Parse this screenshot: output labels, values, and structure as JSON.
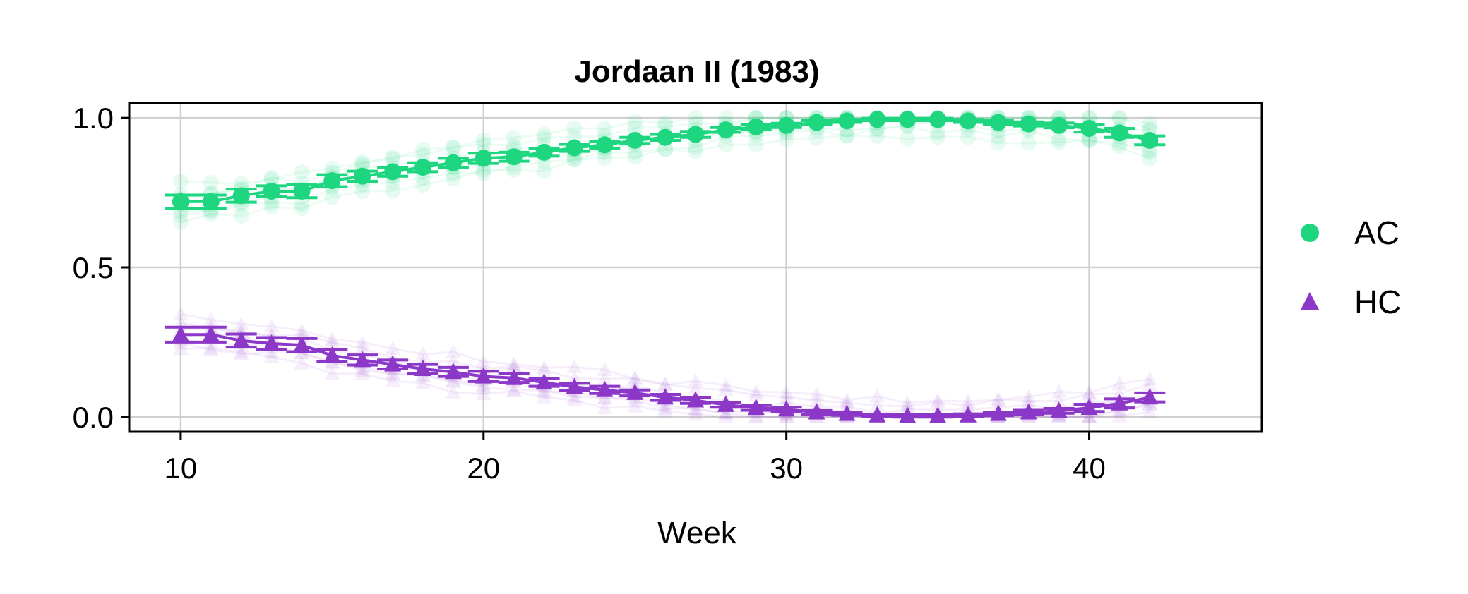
{
  "chart_data": {
    "type": "scatter",
    "title": "Jordaan II (1983)",
    "xlabel": "Week",
    "ylabel": "",
    "xlim": [
      8.3,
      45.7
    ],
    "ylim": [
      -0.05,
      1.05
    ],
    "xticks": [
      10,
      20,
      30,
      40
    ],
    "yticks": [
      0.0,
      0.5,
      1.0
    ],
    "xtick_labels": [
      "10",
      "20",
      "30",
      "40"
    ],
    "ytick_labels": [
      "0.0",
      "0.5",
      "1.0"
    ],
    "grid": true,
    "legend_position": "right",
    "series": [
      {
        "name": "AC",
        "marker": "circle",
        "color": "#1ed67f",
        "x": [
          10,
          11,
          12,
          13,
          14,
          15,
          16,
          17,
          18,
          19,
          20,
          21,
          22,
          23,
          24,
          25,
          26,
          27,
          28,
          29,
          30,
          31,
          32,
          33,
          34,
          35,
          36,
          37,
          38,
          39,
          40,
          41,
          42
        ],
        "y": [
          0.72,
          0.72,
          0.74,
          0.755,
          0.755,
          0.79,
          0.805,
          0.82,
          0.835,
          0.85,
          0.865,
          0.87,
          0.885,
          0.9,
          0.91,
          0.925,
          0.935,
          0.945,
          0.96,
          0.97,
          0.975,
          0.985,
          0.99,
          0.995,
          0.995,
          0.995,
          0.99,
          0.985,
          0.98,
          0.975,
          0.965,
          0.95,
          0.925
        ],
        "err": [
          0.022,
          0.022,
          0.022,
          0.018,
          0.022,
          0.02,
          0.017,
          0.015,
          0.015,
          0.015,
          0.017,
          0.015,
          0.013,
          0.012,
          0.012,
          0.01,
          0.01,
          0.01,
          0.008,
          0.008,
          0.007,
          0.006,
          0.005,
          0.004,
          0.004,
          0.004,
          0.005,
          0.006,
          0.007,
          0.008,
          0.012,
          0.015,
          0.015
        ]
      },
      {
        "name": "HC",
        "marker": "triangle",
        "color": "#8b37c8",
        "x": [
          10,
          11,
          12,
          13,
          14,
          15,
          16,
          17,
          18,
          19,
          20,
          21,
          22,
          23,
          24,
          25,
          26,
          27,
          28,
          29,
          30,
          31,
          32,
          33,
          34,
          35,
          36,
          37,
          38,
          39,
          40,
          41,
          42
        ],
        "y": [
          0.275,
          0.275,
          0.255,
          0.245,
          0.24,
          0.205,
          0.19,
          0.175,
          0.16,
          0.15,
          0.135,
          0.13,
          0.115,
          0.1,
          0.09,
          0.08,
          0.065,
          0.055,
          0.04,
          0.03,
          0.025,
          0.015,
          0.01,
          0.005,
          0.003,
          0.003,
          0.005,
          0.01,
          0.015,
          0.02,
          0.03,
          0.045,
          0.065
        ],
        "err": [
          0.025,
          0.025,
          0.022,
          0.02,
          0.022,
          0.02,
          0.017,
          0.015,
          0.015,
          0.015,
          0.017,
          0.015,
          0.013,
          0.012,
          0.012,
          0.01,
          0.01,
          0.01,
          0.008,
          0.008,
          0.007,
          0.006,
          0.005,
          0.004,
          0.004,
          0.004,
          0.005,
          0.006,
          0.007,
          0.008,
          0.012,
          0.015,
          0.015
        ]
      }
    ]
  }
}
